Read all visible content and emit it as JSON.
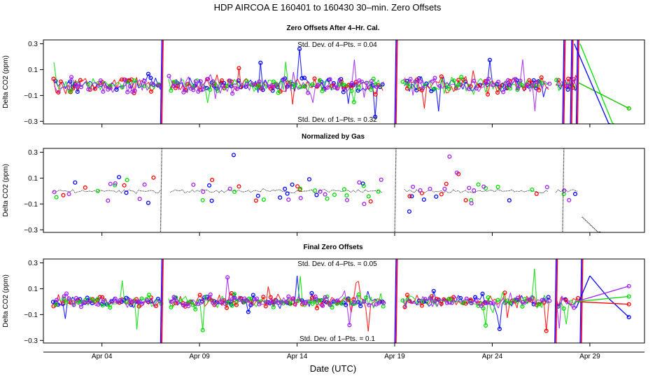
{
  "chart_data": {
    "type": "line",
    "title": "HDP    AIRCOA E    160401 to 160430    30–min. Zero Offsets",
    "xlabel": "Date (UTC)",
    "x_unit": "day of April 2016",
    "xlim": [
      1.0,
      31.8
    ],
    "x_ticks": [
      {
        "value": 4,
        "label": "Apr 04"
      },
      {
        "value": 9,
        "label": "Apr 09"
      },
      {
        "value": 14,
        "label": "Apr 14"
      },
      {
        "value": 19,
        "label": "Apr 19"
      },
      {
        "value": 24,
        "label": "Apr 24"
      },
      {
        "value": 29,
        "label": "Apr 29"
      }
    ],
    "series_colors": {
      "gas1": "#0000ff",
      "gas2": "#ff0000",
      "gas3": "#00dd00",
      "gas4": "#a020f0",
      "mean": "#000000"
    },
    "panels": [
      {
        "title": "Zero Offsets After 4–Hr. Cal.",
        "ylabel": "Delta CO2 (ppm)",
        "ylim": [
          -0.32,
          0.33
        ],
        "y_ticks": [
          -0.3,
          -0.1,
          0.1,
          0.3
        ],
        "y_tick_labels": [
          "−0.3",
          "−0.1",
          "0.1",
          "0.3"
        ],
        "annotation_top": "Std. Dev. of 4–Pts. =  0.04",
        "annotation_bottom": "Std. Dev. of 1–Pts. =  0.32",
        "center": -0.02,
        "noise": 0.06,
        "gaps": [
          [
            7.1,
            7.4
          ],
          [
            18.5,
            19.4
          ],
          [
            27.0,
            27.2
          ]
        ],
        "spikes": [
          [
            7.0,
            2
          ],
          [
            19.0,
            2
          ],
          [
            27.6,
            2
          ],
          [
            28.0,
            2
          ],
          [
            28.3,
            2
          ]
        ],
        "tail_lines": [
          {
            "series": "gas2",
            "points": [
              [
                28.4,
                0.0
              ],
              [
                31.0,
                -0.2
              ]
            ]
          },
          {
            "series": "gas3",
            "points": [
              [
                28.4,
                0.0
              ],
              [
                31.0,
                -0.2
              ]
            ]
          },
          {
            "series": "gas1",
            "points": [
              [
                28.2,
                0.3
              ],
              [
                30.0,
                -0.33
              ]
            ]
          },
          {
            "series": "gas3",
            "points": [
              [
                28.5,
                0.3
              ],
              [
                30.2,
                -0.33
              ]
            ]
          }
        ]
      },
      {
        "title": "Normalized by Gas",
        "ylabel": "Delta CO2 (ppm)",
        "ylim": [
          -0.32,
          0.33
        ],
        "y_ticks": [
          -0.3,
          -0.1,
          0.1,
          0.3
        ],
        "y_tick_labels": [
          "−0.3",
          "−0.1",
          "0.1",
          "0.3"
        ],
        "annotation_top": "",
        "annotation_bottom": "",
        "center": 0.0,
        "noise": 0.1,
        "gaps": [
          [
            7.1,
            7.4
          ],
          [
            18.5,
            19.4
          ],
          [
            27.0,
            27.2
          ]
        ],
        "spikes": [
          [
            7.0,
            2
          ],
          [
            19.0,
            2
          ],
          [
            27.6,
            2
          ]
        ],
        "tail_lines": [
          {
            "series": "mean",
            "points": [
              [
                28.6,
                -0.2
              ],
              [
                29.5,
                -0.33
              ]
            ]
          }
        ]
      },
      {
        "title": "Final Zero Offsets",
        "ylabel": "Delta CO2 (ppm)",
        "ylim": [
          -0.32,
          0.33
        ],
        "y_ticks": [
          -0.3,
          -0.1,
          0.1,
          0.3
        ],
        "y_tick_labels": [
          "−0.3",
          "−0.1",
          "0.1",
          "0.3"
        ],
        "annotation_top": "Std. Dev. of 4–Pts. =  0.05",
        "annotation_bottom": "Std. Dev. of 1–Pts. =  0.1",
        "center": 0.0,
        "noise": 0.045,
        "gaps": [
          [
            7.1,
            7.4
          ],
          [
            18.5,
            19.4
          ],
          [
            27.0,
            27.2
          ]
        ],
        "spikes": [
          [
            7.0,
            2
          ],
          [
            19.0,
            2
          ],
          [
            27.2,
            2
          ],
          [
            28.5,
            2
          ]
        ],
        "tail_lines": [
          {
            "series": "gas1",
            "points": [
              [
                28.3,
                -0.05
              ],
              [
                29.0,
                0.2
              ],
              [
                30.0,
                0.02
              ],
              [
                31.0,
                -0.12
              ]
            ]
          },
          {
            "series": "gas4",
            "points": [
              [
                28.3,
                0.0
              ],
              [
                31.0,
                0.12
              ]
            ]
          },
          {
            "series": "gas2",
            "points": [
              [
                28.3,
                0.0
              ],
              [
                31.0,
                -0.02
              ]
            ]
          },
          {
            "series": "gas3",
            "points": [
              [
                28.3,
                0.0
              ],
              [
                31.0,
                0.04
              ]
            ]
          }
        ]
      }
    ]
  }
}
